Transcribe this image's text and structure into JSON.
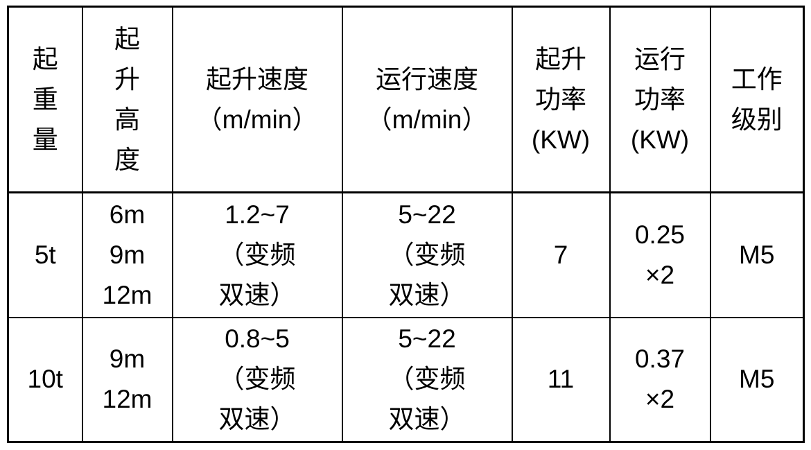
{
  "table": {
    "description": "hoist-specification-table",
    "columns": [
      {
        "id": "capacity",
        "header_lines": [
          "起",
          "重",
          "量"
        ]
      },
      {
        "id": "height",
        "header_lines": [
          "起",
          "升",
          "高",
          "度"
        ]
      },
      {
        "id": "lift_speed",
        "header_lines": [
          "起升速度",
          "（m/min）"
        ]
      },
      {
        "id": "travel_speed",
        "header_lines": [
          "运行速度",
          "（m/min）"
        ]
      },
      {
        "id": "lift_power",
        "header_lines": [
          "起升",
          "功率",
          "(KW)"
        ]
      },
      {
        "id": "travel_power",
        "header_lines": [
          "运行",
          "功率",
          "(KW)"
        ]
      },
      {
        "id": "duty",
        "header_lines": [
          "工作",
          "级别"
        ]
      }
    ],
    "rows": [
      {
        "cells": [
          [
            "5t"
          ],
          [
            "6m",
            "9m",
            "12m"
          ],
          [
            "1.2~7",
            "（变频",
            "双速）"
          ],
          [
            "5~22",
            "（变频",
            "双速）"
          ],
          [
            "7"
          ],
          [
            "0.25",
            "×2"
          ],
          [
            "M5"
          ]
        ]
      },
      {
        "cells": [
          [
            "10t"
          ],
          [
            "9m",
            "12m"
          ],
          [
            "0.8~5",
            "（变频",
            "双速）"
          ],
          [
            "5~22",
            "（变频",
            "双速）"
          ],
          [
            "11"
          ],
          [
            "0.37",
            "×2"
          ],
          [
            "M5"
          ]
        ]
      }
    ],
    "border_color": "#000000",
    "text_color": "#000000",
    "background_color": "#ffffff"
  }
}
